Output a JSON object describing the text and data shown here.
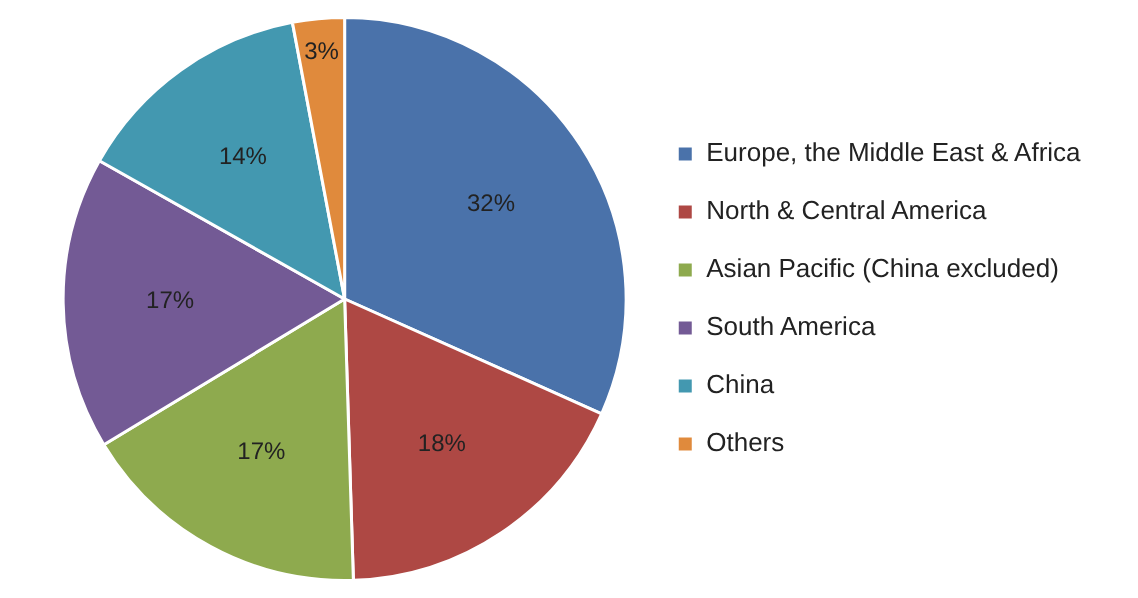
{
  "chart_data": {
    "type": "pie",
    "categories": [
      "Europe, the Middle East & Africa",
      "North & Central America",
      "Asian Pacific (China excluded)",
      "South America",
      "China",
      "Others"
    ],
    "values": [
      32,
      18,
      17,
      17,
      14,
      3
    ],
    "colors": [
      "#4a72aa",
      "#ae4844",
      "#8eaa4e",
      "#735a95",
      "#4398b0",
      "#e08a3c"
    ],
    "value_labels": [
      "32%",
      "18%",
      "17%",
      "17%",
      "14%",
      "3%"
    ],
    "legend": "right"
  }
}
